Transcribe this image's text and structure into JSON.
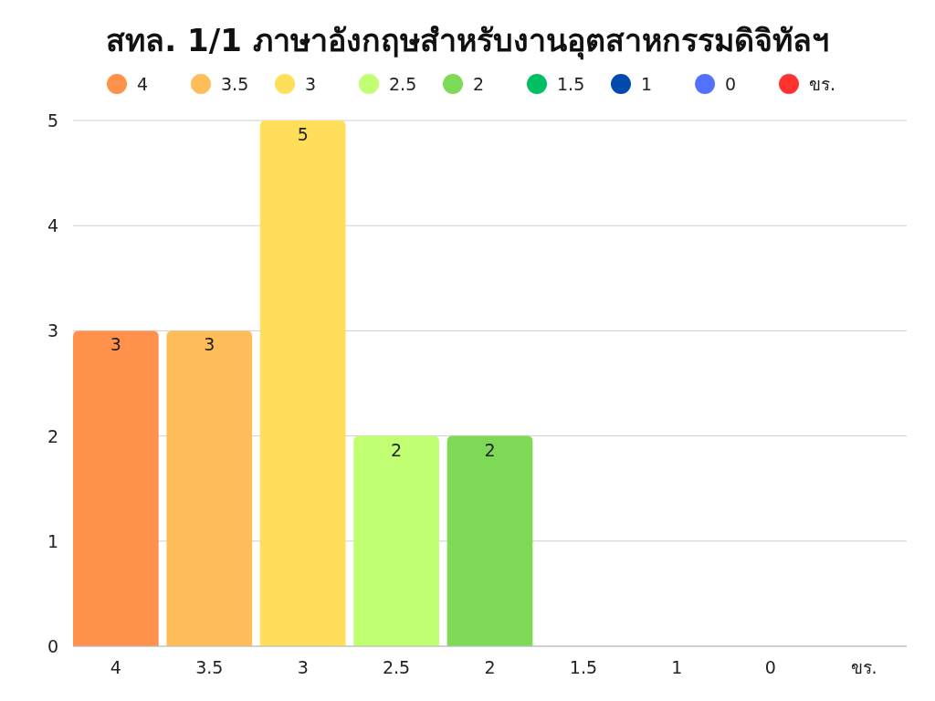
{
  "chart_data": {
    "type": "bar",
    "title": "สทล. 1/1 ภาษาอังกฤษสำหรับงานอุตสาหกรรมดิจิทัลฯ",
    "categories": [
      "4",
      "3.5",
      "3",
      "2.5",
      "2",
      "1.5",
      "1",
      "0",
      "ขร."
    ],
    "series": [
      {
        "name": "4",
        "color": "#ff914d",
        "values": [
          3,
          null,
          null,
          null,
          null,
          null,
          null,
          null,
          null
        ],
        "value_labels": [
          "3",
          null,
          null,
          null,
          null,
          null,
          null,
          null,
          null
        ]
      },
      {
        "name": "3.5",
        "color": "#ffbd59",
        "values": [
          null,
          3,
          null,
          null,
          null,
          null,
          null,
          null,
          null
        ],
        "value_labels": [
          null,
          "3",
          null,
          null,
          null,
          null,
          null,
          null,
          null
        ]
      },
      {
        "name": "3",
        "color": "#ffde59",
        "values": [
          null,
          null,
          5,
          null,
          null,
          null,
          null,
          null,
          null
        ],
        "value_labels": [
          null,
          null,
          "5",
          null,
          null,
          null,
          null,
          null,
          null
        ]
      },
      {
        "name": "2.5",
        "color": "#c1ff72",
        "values": [
          null,
          null,
          null,
          2,
          null,
          null,
          null,
          null,
          null
        ],
        "value_labels": [
          null,
          null,
          null,
          "2",
          null,
          null,
          null,
          null,
          null
        ]
      },
      {
        "name": "2",
        "color": "#7ed957",
        "values": [
          null,
          null,
          null,
          null,
          2,
          null,
          null,
          null,
          null
        ],
        "value_labels": [
          null,
          null,
          null,
          null,
          "2",
          null,
          null,
          null,
          null
        ]
      },
      {
        "name": "1.5",
        "color": "#00bf63",
        "values": [
          null,
          null,
          null,
          null,
          null,
          0,
          null,
          null,
          null
        ]
      },
      {
        "name": "1",
        "color": "#004aad",
        "values": [
          null,
          null,
          null,
          null,
          null,
          null,
          0,
          null,
          null
        ]
      },
      {
        "name": "0",
        "color": "#5271ff",
        "values": [
          null,
          null,
          null,
          null,
          null,
          null,
          null,
          0,
          null
        ]
      },
      {
        "name": "ขร.",
        "color": "#ff3131",
        "values": [
          null,
          null,
          null,
          null,
          null,
          null,
          null,
          null,
          0
        ]
      }
    ],
    "ylim": [
      0,
      5
    ],
    "yticks": [
      0,
      1,
      2,
      3,
      4,
      5
    ],
    "grid": "y",
    "legend": "top"
  }
}
